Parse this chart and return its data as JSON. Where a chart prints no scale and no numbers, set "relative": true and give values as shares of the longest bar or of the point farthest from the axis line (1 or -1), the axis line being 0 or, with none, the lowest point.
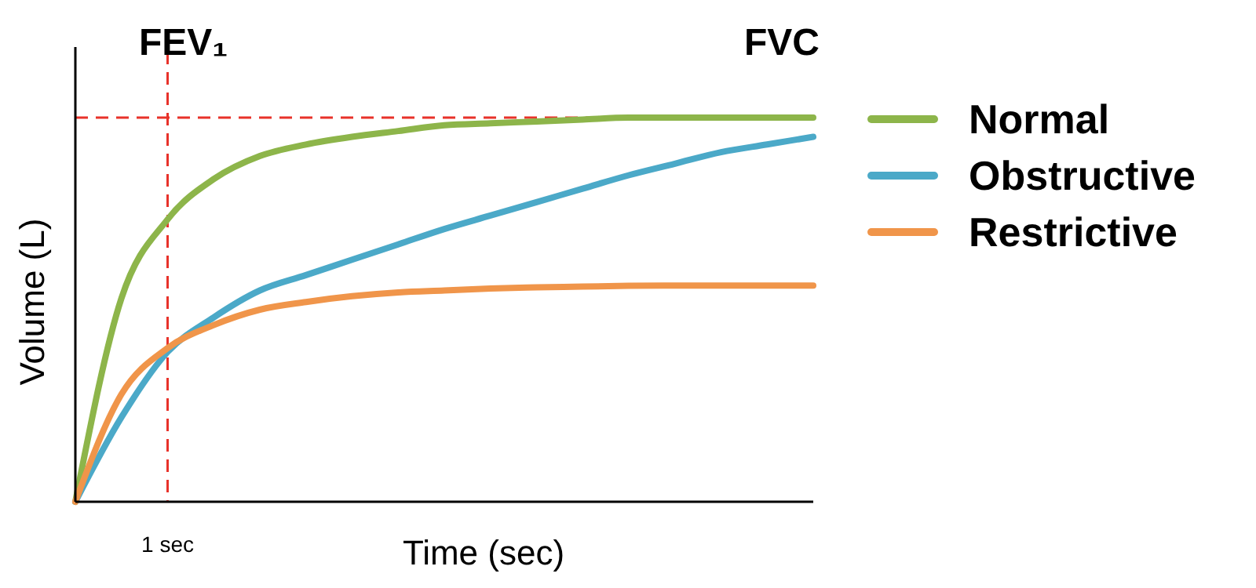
{
  "chart_data": {
    "type": "line",
    "relative": true,
    "xlabel": "Time (sec)",
    "ylabel": "Volume (L)",
    "categories": [
      null,
      null,
      null,
      null,
      null,
      null,
      null,
      null,
      null,
      null,
      null,
      null,
      null,
      null,
      null,
      null,
      null
    ],
    "series": [
      {
        "name": "Normal",
        "color": "#8db54a",
        "values": [
          0,
          0.53,
          0.735,
          0.84,
          0.9,
          0.93,
          0.95,
          0.965,
          0.98,
          0.985,
          0.99,
          0.995,
          1,
          1,
          1,
          1,
          1
        ]
      },
      {
        "name": "Obstructive",
        "color": "#4ba9c8",
        "values": [
          0,
          0.22,
          0.39,
          0.48,
          0.55,
          0.59,
          0.63,
          0.67,
          0.71,
          0.745,
          0.78,
          0.815,
          0.85,
          0.88,
          0.91,
          0.93,
          0.95
        ]
      },
      {
        "name": "Restrictive",
        "color": "#f0954a",
        "values": [
          0,
          0.28,
          0.4,
          0.46,
          0.5,
          0.52,
          0.535,
          0.545,
          0.55,
          0.555,
          0.558,
          0.56,
          0.562,
          0.563,
          0.563,
          0.563,
          0.563
        ]
      }
    ],
    "ref_lines": [
      {
        "axis": "y",
        "value": 1,
        "color": "#e8322a",
        "line_style": "dashed"
      }
    ],
    "annotations": [
      "FEV₁",
      "FVC",
      "1 sec"
    ],
    "legend": "right",
    "marker": "none",
    "line_style": "solid"
  }
}
